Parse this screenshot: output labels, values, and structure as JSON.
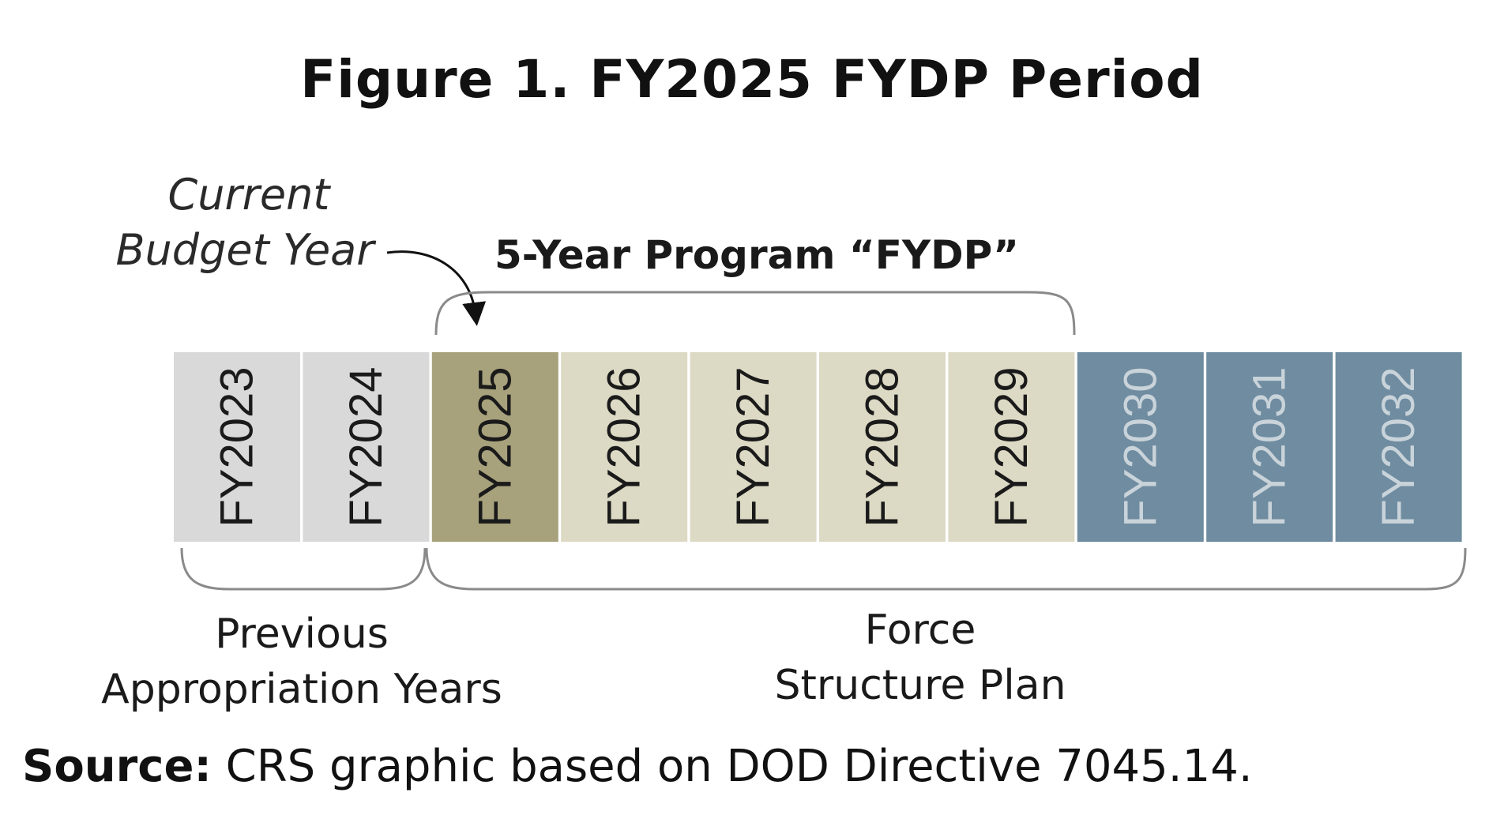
{
  "title": "Figure 1. FY2025 FYDP Period",
  "labels": {
    "current_line1": "Current",
    "current_line2": "Budget Year",
    "fydp": "5-Year Program “FYDP”",
    "previous_line1": "Previous",
    "previous_line2": "Appropriation Years",
    "force_line1": "Force",
    "force_line2": "Structure Plan"
  },
  "years": [
    {
      "label": "FY2023",
      "group": "previous"
    },
    {
      "label": "FY2024",
      "group": "previous"
    },
    {
      "label": "FY2025",
      "group": "current"
    },
    {
      "label": "FY2026",
      "group": "fydp"
    },
    {
      "label": "FY2027",
      "group": "fydp"
    },
    {
      "label": "FY2028",
      "group": "fydp"
    },
    {
      "label": "FY2029",
      "group": "fydp"
    },
    {
      "label": "FY2030",
      "group": "extended"
    },
    {
      "label": "FY2031",
      "group": "extended"
    },
    {
      "label": "FY2032",
      "group": "extended"
    }
  ],
  "colors": {
    "previous": "#d9d9d9",
    "current": "#a7a17c",
    "fydp": "#dcd9c4",
    "extended": "#6f8ca0",
    "text_dark": "#1a1a1a",
    "text_light": "#c9d3da"
  },
  "source": {
    "label": "Source:",
    "text": "CRS graphic based on DOD Directive 7045.14."
  }
}
